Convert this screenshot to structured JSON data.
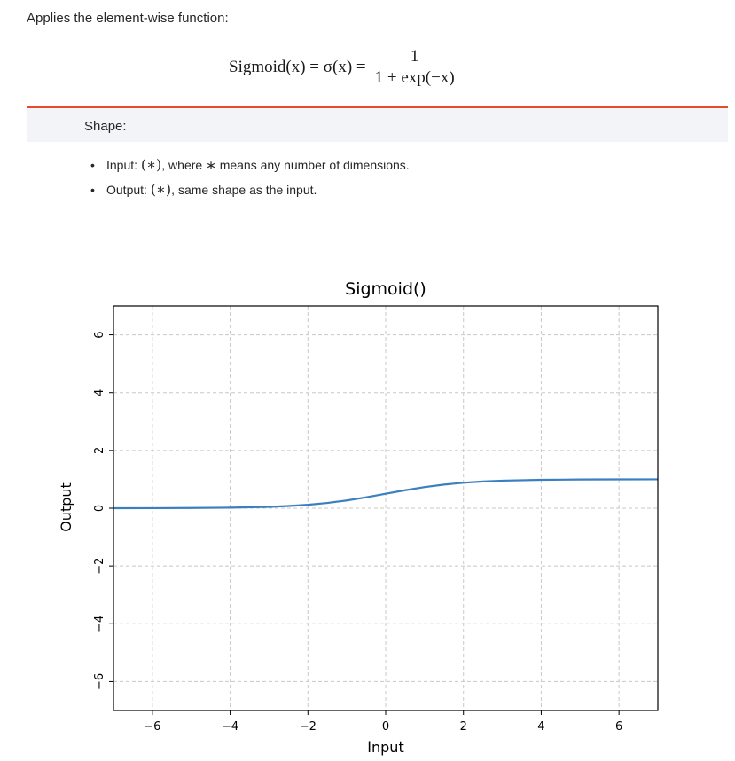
{
  "intro": "Applies the element-wise function:",
  "formula": {
    "lhs": "Sigmoid(x) = σ(x) =",
    "numerator": "1",
    "denominator": "1 + exp(−x)"
  },
  "note": {
    "accent_color": "#e44c2c",
    "title": "Shape:"
  },
  "shape": {
    "items": [
      {
        "label": "Input: ",
        "math": "(∗)",
        "rest": ", where ∗ means any number of dimensions."
      },
      {
        "label": "Output: ",
        "math": "(∗)",
        "rest": ", same shape as the input."
      }
    ]
  },
  "chart_data": {
    "type": "line",
    "title": "Sigmoid()",
    "xlabel": "Input",
    "ylabel": "Output",
    "xlim": [
      -7,
      7
    ],
    "ylim": [
      -7,
      7
    ],
    "xticks": [
      -6,
      -4,
      -2,
      0,
      2,
      4,
      6
    ],
    "yticks": [
      -6,
      -4,
      -2,
      0,
      2,
      4,
      6
    ],
    "grid": true,
    "line_color": "#3a7fbf",
    "series": [
      {
        "x": [
          -7,
          -6,
          -5,
          -4,
          -3,
          -2.5,
          -2,
          -1.5,
          -1,
          -0.5,
          0,
          0.5,
          1,
          1.5,
          2,
          2.5,
          3,
          4,
          5,
          6,
          7
        ],
        "y": [
          0.0009,
          0.0025,
          0.0067,
          0.018,
          0.047,
          0.076,
          0.119,
          0.182,
          0.269,
          0.378,
          0.5,
          0.622,
          0.731,
          0.818,
          0.881,
          0.924,
          0.953,
          0.982,
          0.993,
          0.998,
          0.999
        ]
      }
    ]
  }
}
